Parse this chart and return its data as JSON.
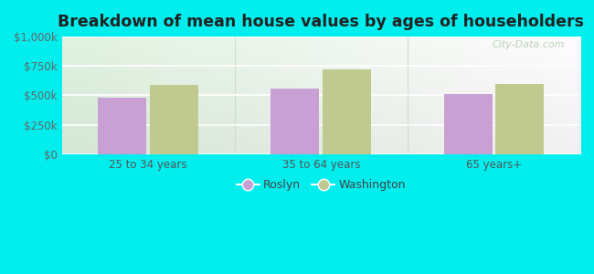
{
  "title": "Breakdown of mean house values by ages of householders",
  "categories": [
    "25 to 34 years",
    "35 to 64 years",
    "65 years+"
  ],
  "roslyn_values": [
    480000,
    555000,
    510000
  ],
  "washington_values": [
    590000,
    725000,
    600000
  ],
  "roslyn_color": "#c8a0d4",
  "washington_color": "#c0ca90",
  "ylim": [
    0,
    1000000
  ],
  "yticks": [
    0,
    250000,
    500000,
    750000,
    1000000
  ],
  "ytick_labels": [
    "$0",
    "$250k",
    "$500k",
    "$750k",
    "$1,000k"
  ],
  "background_color": "#00eeee",
  "legend_roslyn": "Roslyn",
  "legend_washington": "Washington",
  "bar_width": 0.28,
  "watermark": "City-Data.com"
}
